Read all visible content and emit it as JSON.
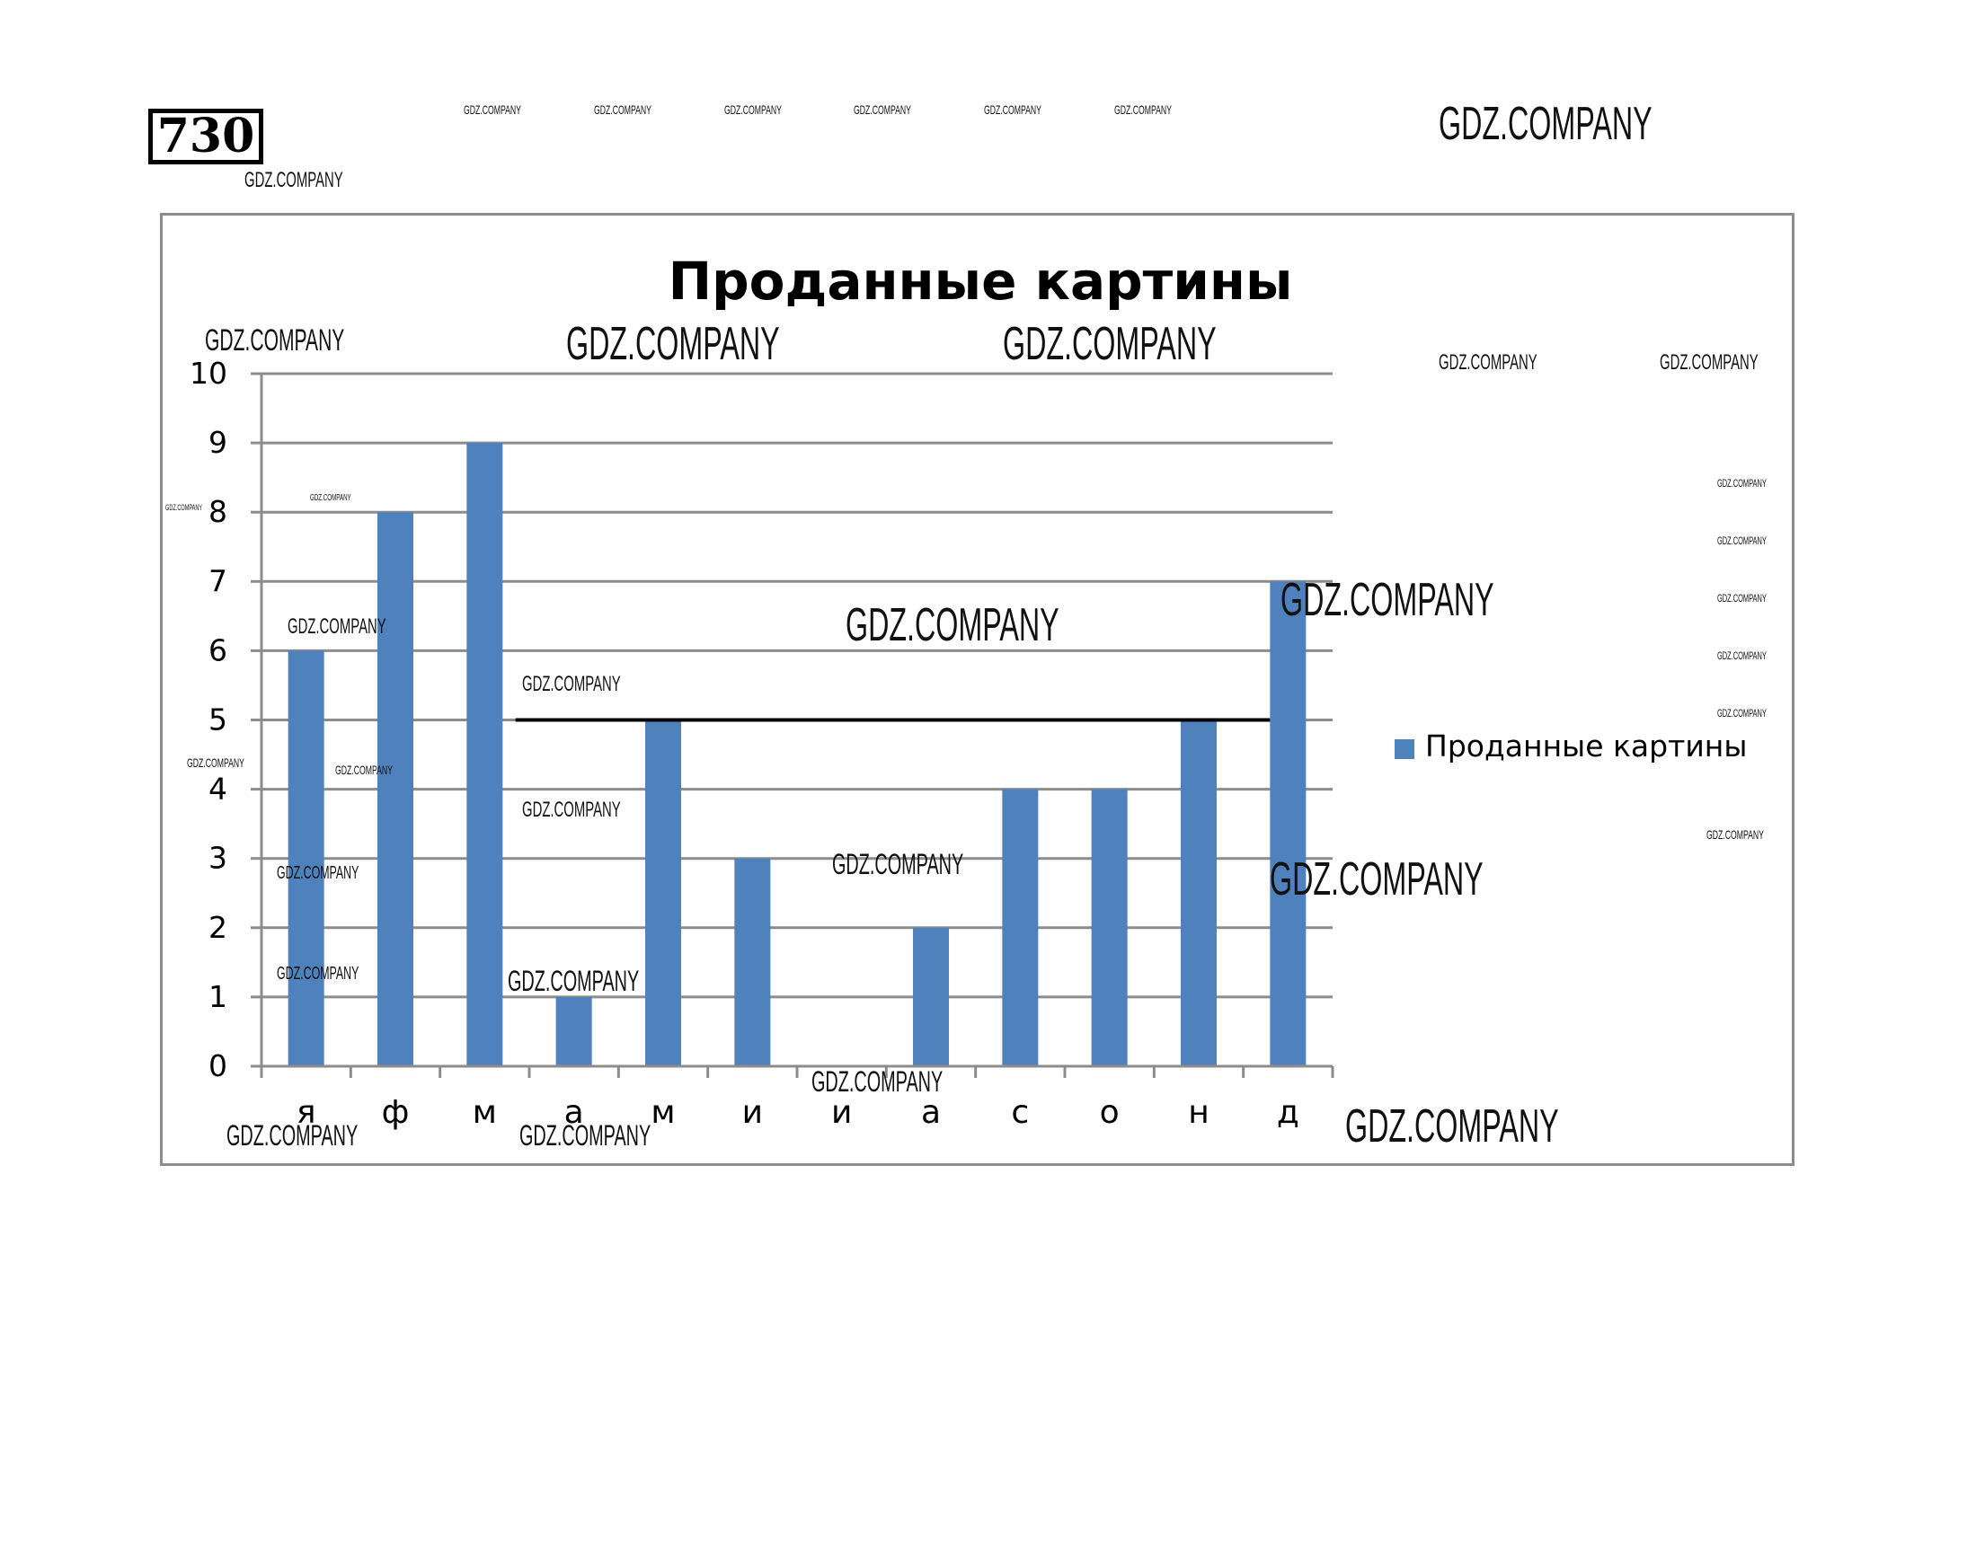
{
  "problem": {
    "number": "730"
  },
  "colors": {
    "bar": "#4f81bd",
    "grid": "#8c8c8c",
    "axis": "#8c8c8c",
    "frame": "#8c8c8c",
    "average_line": "#000000"
  },
  "chart_data": {
    "type": "bar",
    "title": "Проданные картины",
    "xlabel": "",
    "ylabel": "",
    "categories": [
      "я",
      "ф",
      "м",
      "а",
      "м",
      "и",
      "и",
      "а",
      "с",
      "о",
      "н",
      "д"
    ],
    "series": [
      {
        "name": "Проданные картины",
        "values": [
          6,
          8,
          9,
          1,
          5,
          3,
          0,
          2,
          4,
          4,
          5,
          7
        ]
      }
    ],
    "ylim": [
      0,
      10
    ],
    "yticks": [
      "0",
      "1",
      "2",
      "3",
      "4",
      "5",
      "6",
      "7",
      "8",
      "9",
      "10"
    ],
    "grid": true,
    "legend": "right",
    "reference_line": {
      "y": 5,
      "from_category": 3,
      "to_category": 11
    }
  },
  "watermark": {
    "text": "GDZ.COMPANY"
  }
}
